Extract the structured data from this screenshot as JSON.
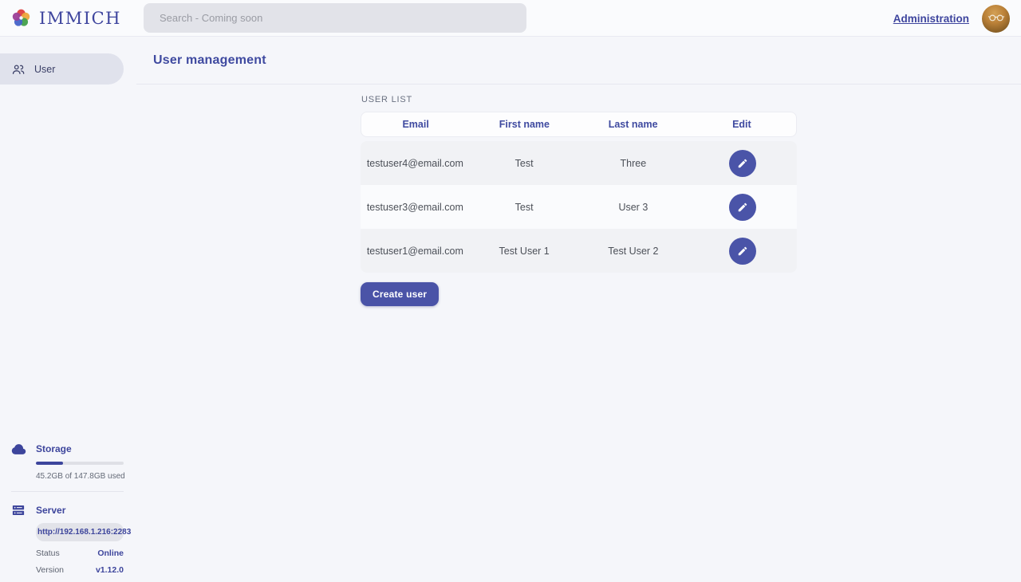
{
  "header": {
    "logo_text": "IMMICH",
    "search": {
      "placeholder": "Search - Coming soon"
    },
    "administration_label": "Administration"
  },
  "sidebar": {
    "nav": [
      {
        "label": "User",
        "icon": "people-icon",
        "selected": true
      }
    ],
    "storage": {
      "title": "Storage",
      "icon": "cloud-icon",
      "usage_text": "45.2GB of 147.8GB used",
      "percent_used": 30.6
    },
    "server": {
      "title": "Server",
      "icon": "server-icon",
      "url": "http://192.168.1.216:2283",
      "rows": [
        {
          "label": "Status",
          "value": "Online"
        },
        {
          "label": "Version",
          "value": "v1.12.0"
        }
      ]
    }
  },
  "main": {
    "page_title": "User management",
    "section_title": "USER LIST",
    "table": {
      "columns": [
        "Email",
        "First name",
        "Last name",
        "Edit"
      ],
      "edit_icon": "pencil-icon",
      "rows": [
        {
          "email": "testuser4@email.com",
          "first_name": "Test",
          "last_name": "Three"
        },
        {
          "email": "testuser3@email.com",
          "first_name": "Test",
          "last_name": "User 3"
        },
        {
          "email": "testuser1@email.com",
          "first_name": "Test User 1",
          "last_name": "Test User 2"
        }
      ]
    },
    "create_user_label": "Create user"
  },
  "colors": {
    "primary": "#3e459e",
    "edit_button": "#4a54a8",
    "create_button": "#4a53a7",
    "status_online": "#3d459c"
  }
}
